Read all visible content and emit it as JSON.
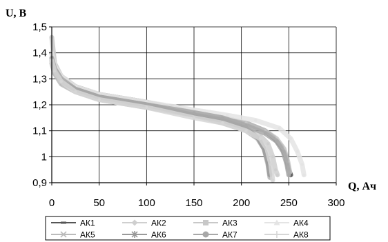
{
  "chart_data": {
    "type": "line",
    "ylabel": "U, В",
    "xlabel": "Q, Ач",
    "xlim": [
      0,
      300
    ],
    "ylim": [
      0.9,
      1.5
    ],
    "x_ticks": [
      0,
      50,
      100,
      150,
      200,
      250,
      300
    ],
    "x_tick_labels": [
      "0",
      "50",
      "100",
      "150",
      "200",
      "250",
      "300"
    ],
    "y_ticks": [
      0.9,
      1.0,
      1.1,
      1.2,
      1.3,
      1.4,
      1.5
    ],
    "y_tick_labels": [
      "0,9",
      "1",
      "1,1",
      "1,2",
      "1,3",
      "1,4",
      "1,5"
    ],
    "grid": true,
    "legend_position": "bottom",
    "series": [
      {
        "name": "АК1",
        "color": "#555555",
        "marker": "dash",
        "x": [
          0,
          3,
          10,
          25,
          50,
          100,
          150,
          180,
          205,
          225,
          235,
          242,
          247,
          250,
          252
        ],
        "y": [
          1.4,
          1.35,
          1.31,
          1.27,
          1.24,
          1.21,
          1.17,
          1.15,
          1.13,
          1.1,
          1.07,
          1.04,
          1.0,
          0.95,
          0.93
        ]
      },
      {
        "name": "АК2",
        "color": "#cfcfcf",
        "marker": "diamond",
        "x": [
          0,
          3,
          10,
          25,
          50,
          100,
          150,
          180,
          205,
          220,
          228,
          233,
          236,
          238
        ],
        "y": [
          1.38,
          1.33,
          1.29,
          1.26,
          1.23,
          1.2,
          1.16,
          1.14,
          1.11,
          1.08,
          1.05,
          1.0,
          0.95,
          0.93
        ]
      },
      {
        "name": "АК3",
        "color": "#c8c8c8",
        "marker": "square",
        "x": [
          0,
          3,
          10,
          25,
          50,
          100,
          150,
          180,
          205,
          225,
          237,
          245,
          249,
          251
        ],
        "y": [
          1.46,
          1.36,
          1.31,
          1.27,
          1.24,
          1.21,
          1.17,
          1.15,
          1.13,
          1.1,
          1.07,
          1.03,
          0.98,
          0.94
        ]
      },
      {
        "name": "АК4",
        "color": "#e4e4e4",
        "marker": "triangle",
        "x": [
          0,
          3,
          10,
          25,
          50,
          100,
          150,
          185,
          215,
          240,
          252,
          259,
          264,
          266
        ],
        "y": [
          1.4,
          1.35,
          1.31,
          1.27,
          1.24,
          1.21,
          1.18,
          1.16,
          1.14,
          1.11,
          1.07,
          1.02,
          0.97,
          0.93
        ]
      },
      {
        "name": "АК5",
        "color": "#bbbbbb",
        "marker": "x",
        "x": [
          0,
          3,
          10,
          25,
          50,
          100,
          150,
          180,
          205,
          217,
          224,
          228,
          230
        ],
        "y": [
          1.36,
          1.32,
          1.28,
          1.25,
          1.22,
          1.19,
          1.16,
          1.13,
          1.1,
          1.07,
          1.03,
          0.97,
          0.92
        ]
      },
      {
        "name": "АК6",
        "color": "#999999",
        "marker": "star",
        "x": [
          0,
          3,
          10,
          25,
          50,
          100,
          150,
          180,
          205,
          218,
          224,
          228,
          230
        ],
        "y": [
          1.37,
          1.33,
          1.29,
          1.26,
          1.23,
          1.2,
          1.16,
          1.14,
          1.11,
          1.07,
          1.03,
          0.98,
          0.93
        ]
      },
      {
        "name": "АК7",
        "color": "#a8a8a8",
        "marker": "circle",
        "x": [
          0,
          3,
          10,
          25,
          50,
          100,
          150,
          180,
          205,
          225,
          237,
          244,
          248,
          250
        ],
        "y": [
          1.38,
          1.34,
          1.3,
          1.26,
          1.23,
          1.2,
          1.17,
          1.15,
          1.12,
          1.09,
          1.06,
          1.02,
          0.97,
          0.93
        ]
      },
      {
        "name": "АК8",
        "color": "#d6d6d6",
        "marker": "plus",
        "x": [
          0,
          3,
          10,
          25,
          50,
          100,
          150,
          180,
          205,
          220,
          227,
          231,
          233
        ],
        "y": [
          1.37,
          1.33,
          1.29,
          1.25,
          1.22,
          1.19,
          1.15,
          1.13,
          1.1,
          1.07,
          1.03,
          0.97,
          0.91
        ]
      }
    ]
  }
}
